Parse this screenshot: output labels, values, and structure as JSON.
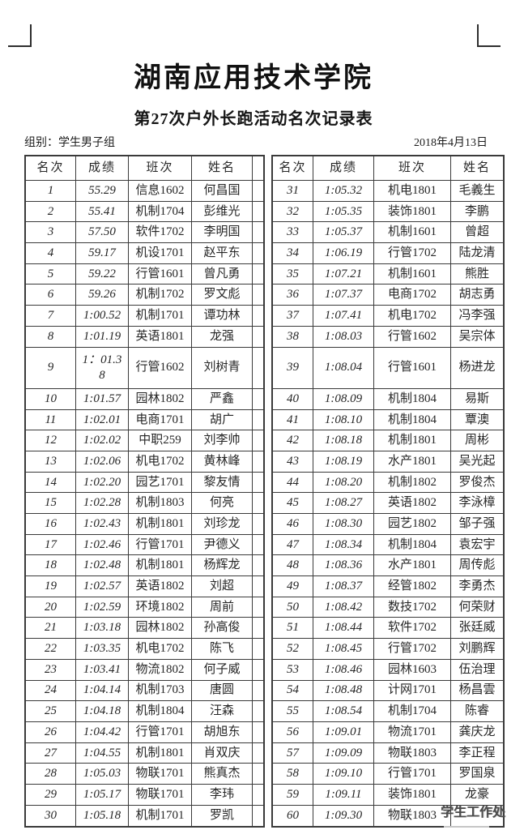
{
  "header": {
    "school": "湖南应用技术学院",
    "subtitle": "第27次户外长跑活动名次记录表",
    "group_label": "组别：学生男子组",
    "date": "2018年4月13日"
  },
  "table": {
    "columns": [
      "名次",
      "成绩",
      "班次",
      "姓名"
    ],
    "left_rows": [
      {
        "rank": "1",
        "score": "55.29",
        "class": "信息1602",
        "name": "何昌国"
      },
      {
        "rank": "2",
        "score": "55.41",
        "class": "机制1704",
        "name": "彭维光"
      },
      {
        "rank": "3",
        "score": "57.50",
        "class": "软件1702",
        "name": "李明国"
      },
      {
        "rank": "4",
        "score": "59.17",
        "class": "机设1701",
        "name": "赵平东"
      },
      {
        "rank": "5",
        "score": "59.22",
        "class": "行管1601",
        "name": "曾凡勇"
      },
      {
        "rank": "6",
        "score": "59.26",
        "class": "机制1702",
        "name": "罗文彪"
      },
      {
        "rank": "7",
        "score": "1:00.52",
        "class": "机制1701",
        "name": "谭功林"
      },
      {
        "rank": "8",
        "score": "1:01.19",
        "class": "英语1801",
        "name": "龙强"
      },
      {
        "rank": "9",
        "score": "1：01.3\n8",
        "class": "行管1602",
        "name": "刘树青"
      },
      {
        "rank": "10",
        "score": "1:01.57",
        "class": "园林1802",
        "name": "严鑫"
      },
      {
        "rank": "11",
        "score": "1:02.01",
        "class": "电商1701",
        "name": "胡广"
      },
      {
        "rank": "12",
        "score": "1:02.02",
        "class": "中职259",
        "name": "刘李帅"
      },
      {
        "rank": "13",
        "score": "1:02.06",
        "class": "机电1702",
        "name": "黄林峰"
      },
      {
        "rank": "14",
        "score": "1:02.20",
        "class": "园艺1701",
        "name": "黎友情"
      },
      {
        "rank": "15",
        "score": "1:02.28",
        "class": "机制1803",
        "name": "何亮"
      },
      {
        "rank": "16",
        "score": "1:02.43",
        "class": "机制1801",
        "name": "刘珍龙"
      },
      {
        "rank": "17",
        "score": "1:02.46",
        "class": "行管1701",
        "name": "尹德义"
      },
      {
        "rank": "18",
        "score": "1:02.48",
        "class": "机制1801",
        "name": "杨辉龙"
      },
      {
        "rank": "19",
        "score": "1:02.57",
        "class": "英语1802",
        "name": "刘超"
      },
      {
        "rank": "20",
        "score": "1:02.59",
        "class": "环境1802",
        "name": "周前"
      },
      {
        "rank": "21",
        "score": "1:03.18",
        "class": "园林1802",
        "name": "孙高俊"
      },
      {
        "rank": "22",
        "score": "1:03.35",
        "class": "机电1702",
        "name": "陈飞"
      },
      {
        "rank": "23",
        "score": "1:03.41",
        "class": "物流1802",
        "name": "何子威"
      },
      {
        "rank": "24",
        "score": "1:04.14",
        "class": "机制1703",
        "name": "唐圆"
      },
      {
        "rank": "25",
        "score": "1:04.18",
        "class": "机制1804",
        "name": "汪森"
      },
      {
        "rank": "26",
        "score": "1:04.42",
        "class": "行管1701",
        "name": "胡旭东"
      },
      {
        "rank": "27",
        "score": "1:04.55",
        "class": "机制1801",
        "name": "肖双庆"
      },
      {
        "rank": "28",
        "score": "1:05.03",
        "class": "物联1701",
        "name": "熊真杰"
      },
      {
        "rank": "29",
        "score": "1:05.17",
        "class": "物联1701",
        "name": "李玮"
      },
      {
        "rank": "30",
        "score": "1:05.18",
        "class": "机制1701",
        "name": "罗凯"
      }
    ],
    "right_rows": [
      {
        "rank": "31",
        "score": "1:05.32",
        "class": "机电1801",
        "name": "毛義生"
      },
      {
        "rank": "32",
        "score": "1:05.35",
        "class": "装饰1801",
        "name": "李鹏"
      },
      {
        "rank": "33",
        "score": "1:05.37",
        "class": "机制1601",
        "name": "曾超"
      },
      {
        "rank": "34",
        "score": "1:06.19",
        "class": "行管1702",
        "name": "陆龙清"
      },
      {
        "rank": "35",
        "score": "1:07.21",
        "class": "机制1601",
        "name": "熊胜"
      },
      {
        "rank": "36",
        "score": "1:07.37",
        "class": "电商1702",
        "name": "胡志勇"
      },
      {
        "rank": "37",
        "score": "1:07.41",
        "class": "机电1702",
        "name": "冯李强"
      },
      {
        "rank": "38",
        "score": "1:08.03",
        "class": "行管1602",
        "name": "吴宗体"
      },
      {
        "rank": "39",
        "score": "1:08.04",
        "class": "行管1601",
        "name": "杨进龙"
      },
      {
        "rank": "40",
        "score": "1:08.09",
        "class": "机制1804",
        "name": "易斯"
      },
      {
        "rank": "41",
        "score": "1:08.10",
        "class": "机制1804",
        "name": "覃澳"
      },
      {
        "rank": "42",
        "score": "1:08.18",
        "class": "机制1801",
        "name": "周彬"
      },
      {
        "rank": "43",
        "score": "1:08.19",
        "class": "水产1801",
        "name": "吴光起"
      },
      {
        "rank": "44",
        "score": "1:08.20",
        "class": "机制1802",
        "name": "罗俊杰"
      },
      {
        "rank": "45",
        "score": "1:08.27",
        "class": "英语1802",
        "name": "李泳樟"
      },
      {
        "rank": "46",
        "score": "1:08.30",
        "class": "园艺1802",
        "name": "邹子强"
      },
      {
        "rank": "47",
        "score": "1:08.34",
        "class": "机制1804",
        "name": "袁宏宇"
      },
      {
        "rank": "48",
        "score": "1:08.36",
        "class": "水产1801",
        "name": "周传彪"
      },
      {
        "rank": "49",
        "score": "1:08.37",
        "class": "经管1802",
        "name": "李勇杰"
      },
      {
        "rank": "50",
        "score": "1:08.42",
        "class": "数技1702",
        "name": "何荣财"
      },
      {
        "rank": "51",
        "score": "1:08.44",
        "class": "软件1702",
        "name": "张廷威"
      },
      {
        "rank": "52",
        "score": "1:08.45",
        "class": "行管1702",
        "name": "刘鹏辉"
      },
      {
        "rank": "53",
        "score": "1:08.46",
        "class": "园林1603",
        "name": "伍治理"
      },
      {
        "rank": "54",
        "score": "1:08.48",
        "class": "计网1701",
        "name": "杨昌雲"
      },
      {
        "rank": "55",
        "score": "1:08.54",
        "class": "机制1704",
        "name": "陈睿"
      },
      {
        "rank": "56",
        "score": "1:09.01",
        "class": "物流1701",
        "name": "龚庆龙"
      },
      {
        "rank": "57",
        "score": "1:09.09",
        "class": "物联1803",
        "name": "李正程"
      },
      {
        "rank": "58",
        "score": "1:09.10",
        "class": "行管1701",
        "name": "罗国泉"
      },
      {
        "rank": "59",
        "score": "1:09.11",
        "class": "装饰1801",
        "name": "龙豪"
      },
      {
        "rank": "60",
        "score": "1:09.30",
        "class": "物联1803",
        "name": ""
      }
    ],
    "tall_row_index": 8
  },
  "watermark": "学生工作处",
  "colors": {
    "border": "#3a3a3a",
    "text": "#262626",
    "watermark": "#4b4b4b"
  }
}
